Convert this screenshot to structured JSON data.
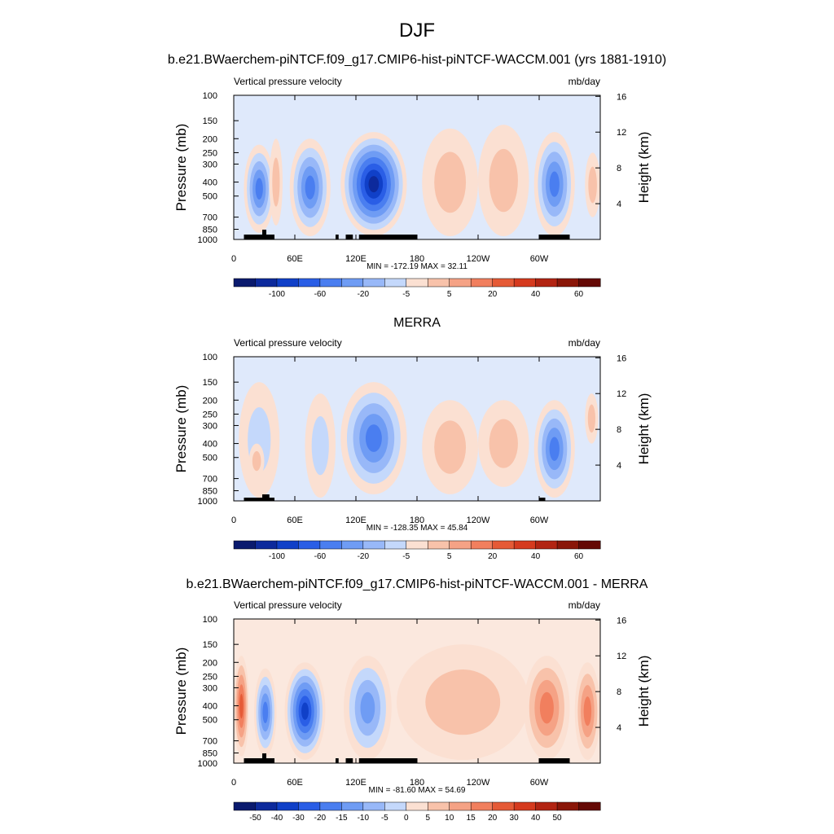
{
  "figure": {
    "title": "DJF"
  },
  "chart_data": [
    {
      "type": "heatmap",
      "subtitle": "b.e21.BWaerchem-piNTCF.f09_g17.CMIP6-hist-piNTCF-WACCM.001 (yrs 1881-1910)",
      "left_label": "Vertical pressure velocity",
      "right_label": "mb/day",
      "ylabel": "Pressure (mb)",
      "y2label": "Height (km)",
      "x_ticks": [
        "0",
        "60E",
        "120E",
        "180",
        "120W",
        "60W"
      ],
      "y_ticks": [
        "100",
        "150",
        "200",
        "250",
        "300",
        "400",
        "500",
        "700",
        "850",
        "1000"
      ],
      "y2_ticks": [
        "16",
        "12",
        "8",
        "4"
      ],
      "stats": "MIN = -172.19  MAX =  32.11",
      "colorbar_labels": [
        "-100",
        "-60",
        "-20",
        "-5",
        "5",
        "20",
        "40",
        "60"
      ],
      "colorbar_colors": [
        "#0a1a6e",
        "#0d2a9c",
        "#1040c8",
        "#2a5ee6",
        "#4a7ef0",
        "#6f9cf4",
        "#98b8f8",
        "#c4d8fb",
        "#fbe0d2",
        "#f8c2aa",
        "#f5a285",
        "#f17f5e",
        "#e55a36",
        "#d53a1e",
        "#b22412",
        "#8a1608",
        "#650905"
      ],
      "min": -172.19,
      "max": 32.11,
      "fields": [
        {
          "x": [
            10,
            40
          ],
          "y": [
            220,
            900
          ],
          "v": -60
        },
        {
          "x": [
            55,
            95
          ],
          "y": [
            200,
            950
          ],
          "v": -60
        },
        {
          "x": [
            105,
            170
          ],
          "y": [
            180,
            950
          ],
          "v": -100
        },
        {
          "x": [
            185,
            240
          ],
          "y": [
            170,
            950
          ],
          "v": 20
        },
        {
          "x": [
            240,
            290
          ],
          "y": [
            160,
            950
          ],
          "v": 20
        },
        {
          "x": [
            295,
            335
          ],
          "y": [
            180,
            950
          ],
          "v": -60
        },
        {
          "x": [
            345,
            360
          ],
          "y": [
            250,
            700
          ],
          "v": 20
        },
        {
          "x": [
            35,
            48
          ],
          "y": [
            200,
            800
          ],
          "v": 10
        }
      ]
    },
    {
      "type": "heatmap",
      "subtitle": "MERRA",
      "left_label": "Vertical pressure velocity",
      "right_label": "mb/day",
      "ylabel": "Pressure (mb)",
      "y2label": "Height (km)",
      "x_ticks": [
        "0",
        "60E",
        "120E",
        "180",
        "120W",
        "60W"
      ],
      "y_ticks": [
        "100",
        "150",
        "200",
        "250",
        "300",
        "400",
        "500",
        "700",
        "850",
        "1000"
      ],
      "y2_ticks": [
        "16",
        "12",
        "8",
        "4"
      ],
      "stats": "MIN = -128.35  MAX =  45.84",
      "colorbar_labels": [
        "-100",
        "-60",
        "-20",
        "-5",
        "5",
        "20",
        "40",
        "60"
      ],
      "colorbar_colors": [
        "#0a1a6e",
        "#0d2a9c",
        "#1040c8",
        "#2a5ee6",
        "#4a7ef0",
        "#6f9cf4",
        "#98b8f8",
        "#c4d8fb",
        "#fbe0d2",
        "#f8c2aa",
        "#f5a285",
        "#f17f5e",
        "#e55a36",
        "#d53a1e",
        "#b22412",
        "#8a1608",
        "#650905"
      ],
      "min": -128.35,
      "max": 45.84,
      "fields": [
        {
          "x": [
            5,
            45
          ],
          "y": [
            150,
            950
          ],
          "v": -20
        },
        {
          "x": [
            70,
            100
          ],
          "y": [
            180,
            950
          ],
          "v": -20
        },
        {
          "x": [
            105,
            170
          ],
          "y": [
            150,
            900
          ],
          "v": -60
        },
        {
          "x": [
            185,
            240
          ],
          "y": [
            200,
            900
          ],
          "v": 10
        },
        {
          "x": [
            240,
            290
          ],
          "y": [
            200,
            800
          ],
          "v": 20
        },
        {
          "x": [
            295,
            335
          ],
          "y": [
            200,
            950
          ],
          "v": -60
        },
        {
          "x": [
            345,
            358
          ],
          "y": [
            180,
            400
          ],
          "v": 20
        },
        {
          "x": [
            15,
            30
          ],
          "y": [
            400,
            700
          ],
          "v": 20
        }
      ]
    },
    {
      "type": "heatmap",
      "subtitle": "b.e21.BWaerchem-piNTCF.f09_g17.CMIP6-hist-piNTCF-WACCM.001 - MERRA",
      "left_label": "Vertical pressure velocity",
      "right_label": "mb/day",
      "ylabel": "Pressure (mb)",
      "y2label": "Height (km)",
      "x_ticks": [
        "0",
        "60E",
        "120E",
        "180",
        "120W",
        "60W"
      ],
      "y_ticks": [
        "100",
        "150",
        "200",
        "250",
        "300",
        "400",
        "500",
        "700",
        "850",
        "1000"
      ],
      "y2_ticks": [
        "16",
        "12",
        "8",
        "4"
      ],
      "stats": "MIN = -81.60  MAX =  54.69",
      "colorbar_labels": [
        "-50",
        "-40",
        "-30",
        "-20",
        "-15",
        "-10",
        "-5",
        "0",
        "5",
        "10",
        "15",
        "20",
        "30",
        "40",
        "50"
      ],
      "colorbar_colors": [
        "#0a1a6e",
        "#0d2a9c",
        "#1040c8",
        "#2a5ee6",
        "#4a7ef0",
        "#6f9cf4",
        "#98b8f8",
        "#c4d8fb",
        "#fbe0d2",
        "#f8c2aa",
        "#f5a285",
        "#f17f5e",
        "#e55a36",
        "#d53a1e",
        "#b22412",
        "#8a1608",
        "#650905"
      ],
      "min": -81.6,
      "max": 54.69,
      "fields": [
        {
          "x": [
            0,
            15
          ],
          "y": [
            180,
            900
          ],
          "v": 30
        },
        {
          "x": [
            20,
            42
          ],
          "y": [
            220,
            900
          ],
          "v": -30
        },
        {
          "x": [
            50,
            90
          ],
          "y": [
            200,
            950
          ],
          "v": -40
        },
        {
          "x": [
            108,
            155
          ],
          "y": [
            180,
            950
          ],
          "v": -20
        },
        {
          "x": [
            160,
            290
          ],
          "y": [
            150,
            950
          ],
          "v": 5
        },
        {
          "x": [
            285,
            330
          ],
          "y": [
            180,
            950
          ],
          "v": 20
        },
        {
          "x": [
            335,
            360
          ],
          "y": [
            200,
            950
          ],
          "v": 20
        }
      ]
    }
  ]
}
